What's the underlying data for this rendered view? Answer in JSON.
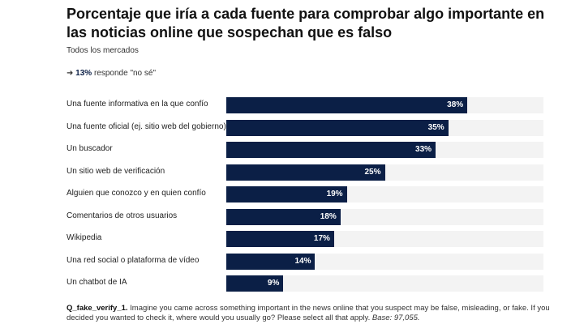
{
  "chart_data": {
    "type": "bar",
    "orientation": "horizontal",
    "title": "Porcentaje que iría a cada fuente para comprobar algo importante en las noticias online que sospechan que es falso",
    "subtitle": "Todos los mercados",
    "note": {
      "arrow": "➜",
      "value": "13%",
      "text": " responde \"no sé\""
    },
    "categories": [
      "Una fuente informativa en la que confío",
      "Una fuente oficial (ej. sitio web del gobierno)",
      "Un buscador",
      "Un sitio web de verificación",
      "Alguien que conozco y en quien confío",
      "Comentarios de otros usuarios",
      "Wikipedia",
      "Una red social o plataforma de vídeo",
      "Un chatbot de IA"
    ],
    "values": [
      38,
      35,
      33,
      25,
      19,
      18,
      17,
      14,
      9
    ],
    "labels": [
      "38%",
      "35%",
      "33%",
      "25%",
      "19%",
      "18%",
      "17%",
      "14%",
      "9%"
    ],
    "xlim": [
      0,
      50
    ],
    "grid": false,
    "bar_color": "#0b1f46",
    "track_color": "#f3f3f3"
  },
  "footnote": {
    "code": "Q_fake_verify_1.",
    "text": " Imagine you came across something important in the news online that you suspect may be false, misleading, or fake. If you decided you wanted to check it, where would you usually go? Please select all that apply. ",
    "base": "Base: 97,055."
  }
}
